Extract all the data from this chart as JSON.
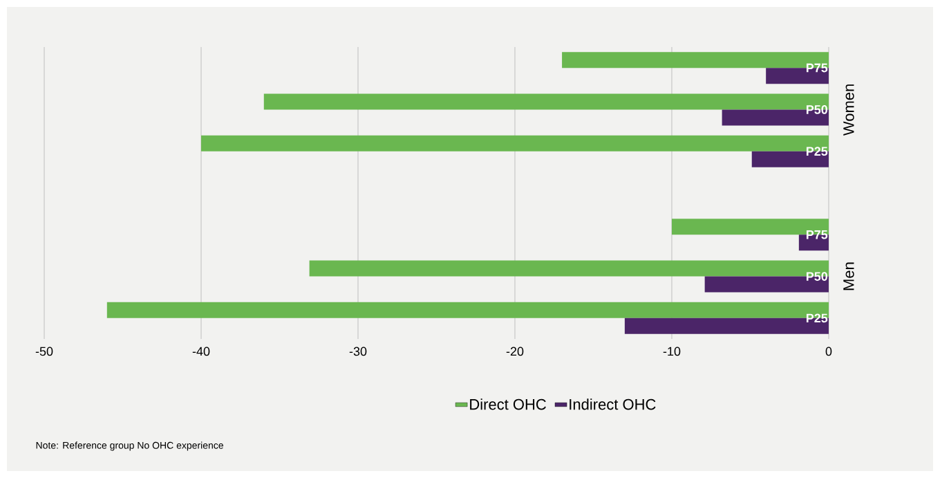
{
  "chart_data": {
    "type": "bar",
    "orientation": "horizontal",
    "categories": [
      "P75",
      "P50",
      "P25",
      null,
      "P75",
      "P50",
      "P25"
    ],
    "series": [
      {
        "name": "Direct OHC",
        "color": "#6ab750",
        "values": [
          -17,
          -36,
          -40,
          null,
          -10,
          -33.1,
          -46
        ]
      },
      {
        "name": "Indirect OHC",
        "color": "#4b2568",
        "values": [
          -4,
          -6.8,
          -4.9,
          null,
          -1.9,
          -7.9,
          -13
        ]
      }
    ],
    "xlim": [
      -50,
      0
    ],
    "xticks": [
      -50,
      -40,
      -30,
      -20,
      -10,
      0
    ],
    "grid": "x",
    "legend": "bottom",
    "annotations": [
      "Women",
      "Men",
      "Note: Reference group No OHC experience"
    ]
  }
}
